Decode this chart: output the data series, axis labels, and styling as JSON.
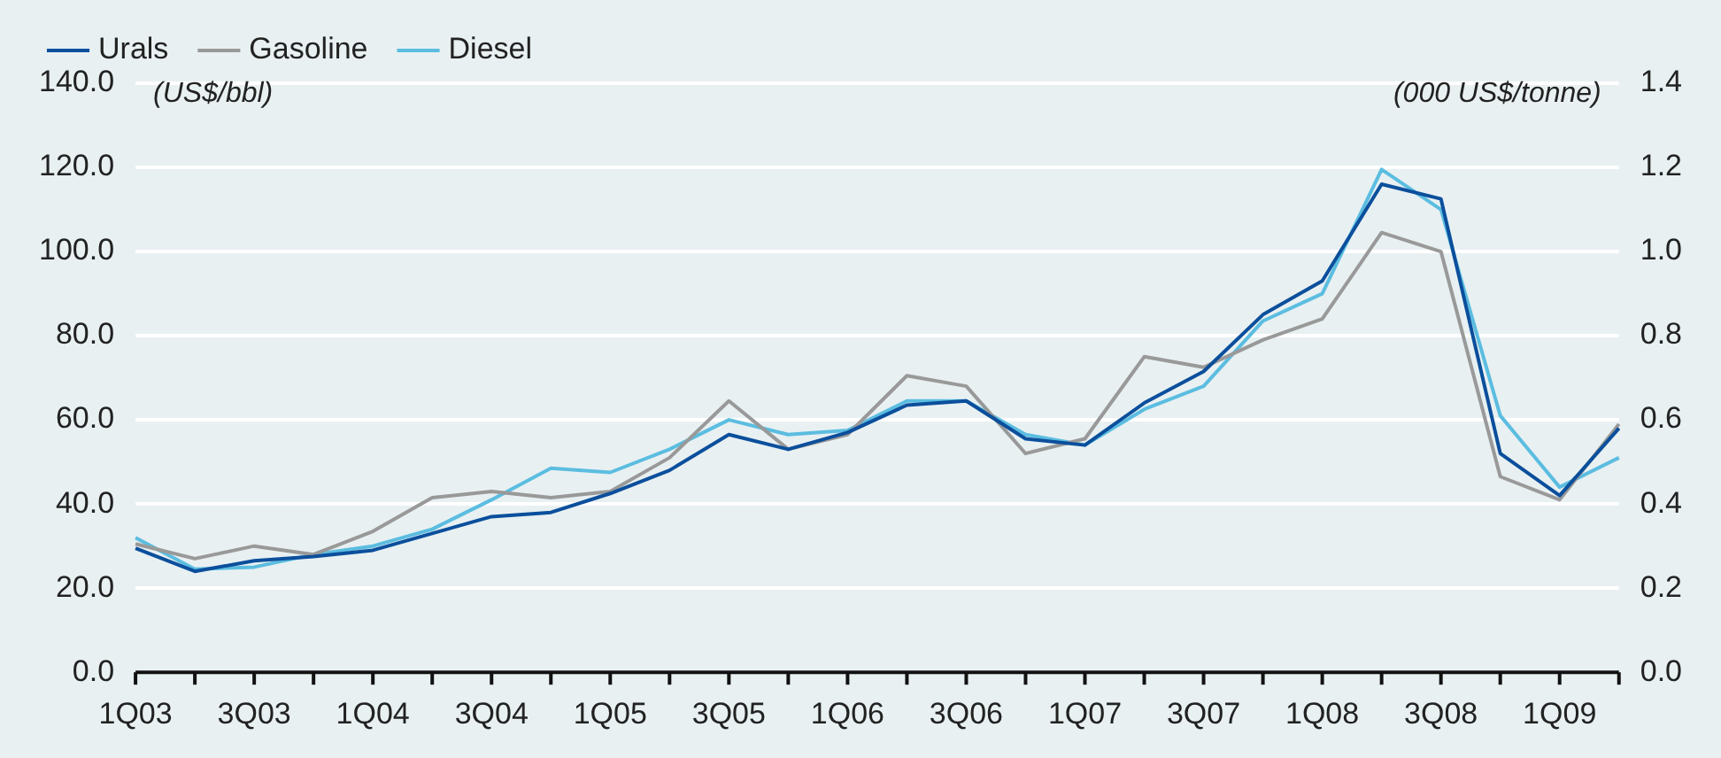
{
  "chart_data": {
    "type": "line",
    "ylabel": "(US$/bbl)",
    "y2label": "(000 US$/tonne)",
    "categories": [
      "1Q03",
      null,
      "3Q03",
      null,
      "1Q04",
      null,
      "3Q04",
      null,
      "1Q05",
      null,
      "3Q05",
      null,
      "1Q06",
      null,
      "3Q06",
      null,
      "1Q07",
      null,
      "3Q07",
      null,
      "1Q08",
      null,
      "3Q08",
      null,
      "1Q09",
      null
    ],
    "series": [
      {
        "name": "Urals",
        "color": "#0b4f9c",
        "values": [
          29.5,
          24,
          26.5,
          27.5,
          29,
          33,
          37,
          38,
          42.5,
          48,
          56.5,
          53,
          57,
          63.5,
          64.5,
          55.5,
          54,
          64,
          71.5,
          85,
          93,
          116,
          112.5,
          52,
          42,
          58
        ]
      },
      {
        "name": "Gasoline",
        "color": "#999999",
        "axis": "y2",
        "values": [
          0.305,
          0.27,
          0.3,
          0.28,
          0.335,
          0.415,
          0.43,
          0.415,
          0.43,
          0.51,
          0.645,
          0.53,
          0.565,
          0.705,
          0.68,
          0.52,
          0.555,
          0.75,
          0.725,
          0.79,
          0.84,
          1.045,
          1.0,
          0.465,
          0.41,
          0.59
        ]
      },
      {
        "name": "Diesel",
        "color": "#5bbde0",
        "axis": "y2",
        "values": [
          0.32,
          0.245,
          0.25,
          0.28,
          0.3,
          0.34,
          0.41,
          0.485,
          0.475,
          0.53,
          0.6,
          0.565,
          0.575,
          0.645,
          0.645,
          0.565,
          0.54,
          0.625,
          0.68,
          0.835,
          0.9,
          1.195,
          1.1,
          0.61,
          0.44,
          0.51
        ]
      }
    ],
    "ylim": [
      0,
      140
    ],
    "yticks": [
      {
        "value": 0,
        "label": "0.0"
      },
      {
        "value": 20,
        "label": "20.0"
      },
      {
        "value": 40,
        "label": "40.0"
      },
      {
        "value": 60,
        "label": "60.0"
      },
      {
        "value": 80,
        "label": "80.0"
      },
      {
        "value": 100,
        "label": "100.0"
      },
      {
        "value": 120,
        "label": "120.0"
      },
      {
        "value": 140,
        "label": "140.0"
      }
    ],
    "y2lim": [
      0,
      1.4
    ],
    "y2ticks": [
      {
        "value": 0,
        "label": "0.0"
      },
      0.2,
      0.4,
      0.6,
      0.8,
      {
        "value": 1,
        "label": "1.0"
      },
      1.2,
      1.4
    ],
    "grid": "y",
    "legend": "top left",
    "marker": "none",
    "line_style": "solid"
  }
}
